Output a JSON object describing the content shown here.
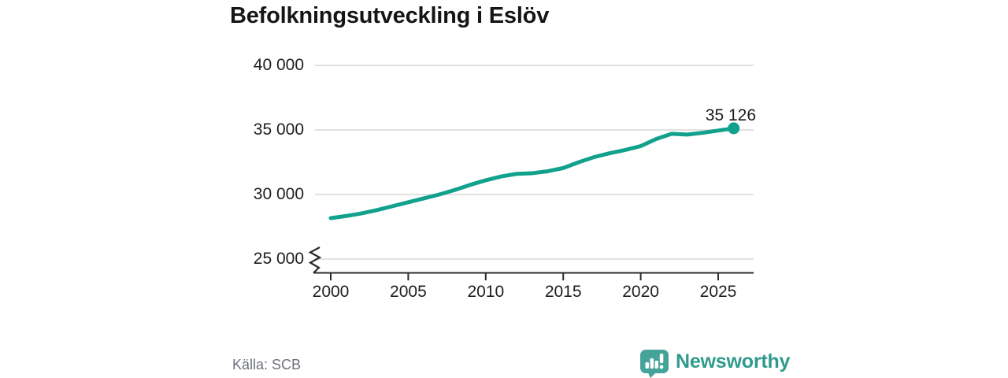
{
  "title": "Befolkningsutveckling i Eslöv",
  "source": "Källa: SCB",
  "logo": {
    "text": "Newsworthy"
  },
  "colors": {
    "line": "#12a18c",
    "marker": "#12a18c",
    "gridline": "#e1e1e1",
    "axis": "#2b2b2b",
    "title_text": "#151515",
    "axis_text": "#1f1f1f",
    "muted_text": "#6d717b",
    "logo_bubble": "#45a39a",
    "logo_text": "#2f9a8c"
  },
  "chart_data": {
    "type": "line",
    "title": "Befolkningsutveckling i Eslöv",
    "x": [
      2000,
      2001,
      2002,
      2003,
      2004,
      2005,
      2006,
      2007,
      2008,
      2009,
      2010,
      2011,
      2012,
      2013,
      2014,
      2015,
      2016,
      2017,
      2018,
      2019,
      2020,
      2021,
      2022,
      2023,
      2024,
      2025,
      2026
    ],
    "values": [
      28170,
      28340,
      28540,
      28800,
      29100,
      29400,
      29700,
      30000,
      30350,
      30750,
      31100,
      31400,
      31600,
      31650,
      31800,
      32050,
      32500,
      32900,
      33200,
      33450,
      33750,
      34300,
      34700,
      34640,
      34780,
      34950,
      35126
    ],
    "xlabel": "",
    "ylabel": "",
    "ylim": [
      25000,
      40000
    ],
    "yticks": [
      40000,
      35000,
      30000,
      25000
    ],
    "ytick_labels": [
      "40 000",
      "35 000",
      "30 000",
      "25 000"
    ],
    "xticks": [
      2000,
      2005,
      2010,
      2015,
      2020,
      2025
    ],
    "xtick_labels": [
      "2000",
      "2005",
      "2010",
      "2015",
      "2020",
      "2025"
    ],
    "grid": "horizontal",
    "axis_break": true,
    "last_point_label": "35 126",
    "last_point_value": 35126,
    "legend_position": "none"
  }
}
